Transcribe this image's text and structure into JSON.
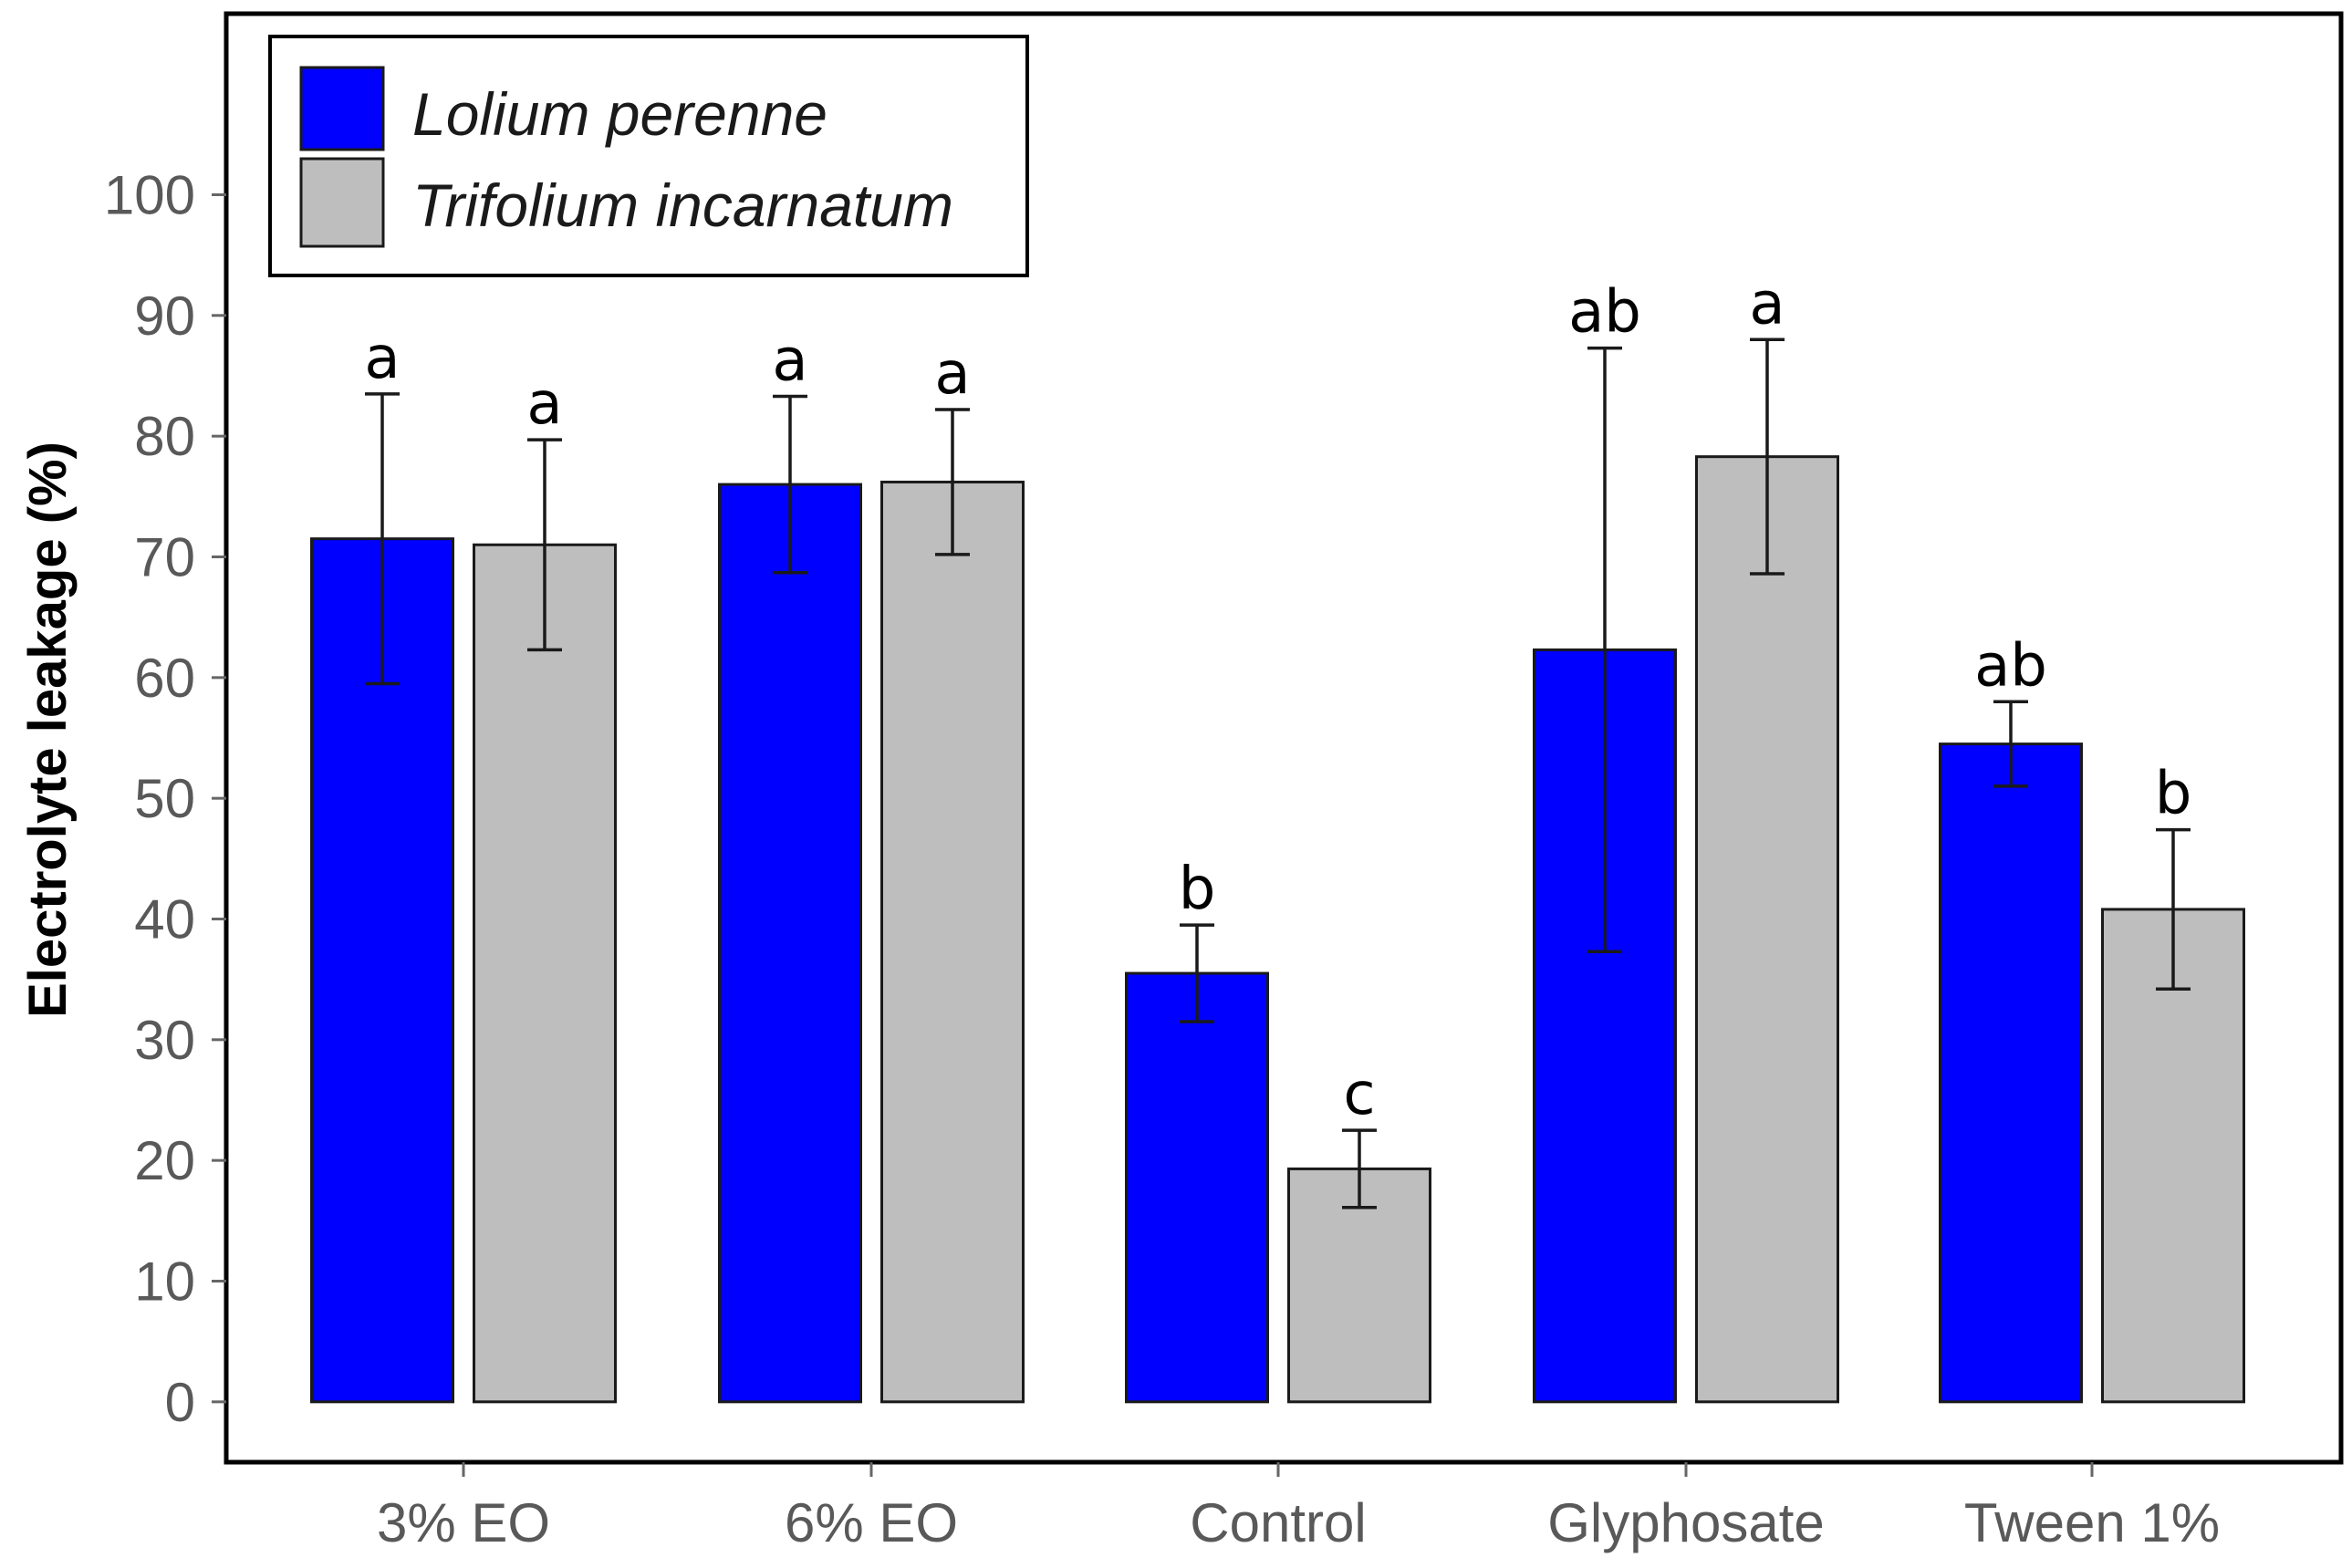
{
  "chart_data": {
    "type": "bar",
    "title": "",
    "xlabel": "",
    "ylabel": "Electrolyte leakage (%)",
    "ylim": [
      -5,
      115
    ],
    "yticks": [
      0,
      10,
      20,
      30,
      40,
      50,
      60,
      70,
      80,
      90,
      100
    ],
    "categories": [
      "3% EO",
      "6% EO",
      "Control",
      "Glyphosate",
      "Tween 1%"
    ],
    "legend_position": "top-left",
    "series": [
      {
        "name": "Lolium perenne",
        "color": "#0000ff",
        "values": [
          71.5,
          76.0,
          35.5,
          62.3,
          54.5
        ],
        "errors": [
          12.0,
          7.3,
          4.0,
          25.0,
          3.5
        ],
        "significance": [
          "a",
          "a",
          "b",
          "ab",
          "ab"
        ]
      },
      {
        "name": "Trifolium incarnatum",
        "color": "#bebebe",
        "values": [
          71.0,
          76.2,
          19.3,
          78.3,
          40.8
        ],
        "errors": [
          8.7,
          6.0,
          3.2,
          9.7,
          6.6
        ],
        "significance": [
          "a",
          "a",
          "c",
          "a",
          "b"
        ]
      }
    ]
  }
}
